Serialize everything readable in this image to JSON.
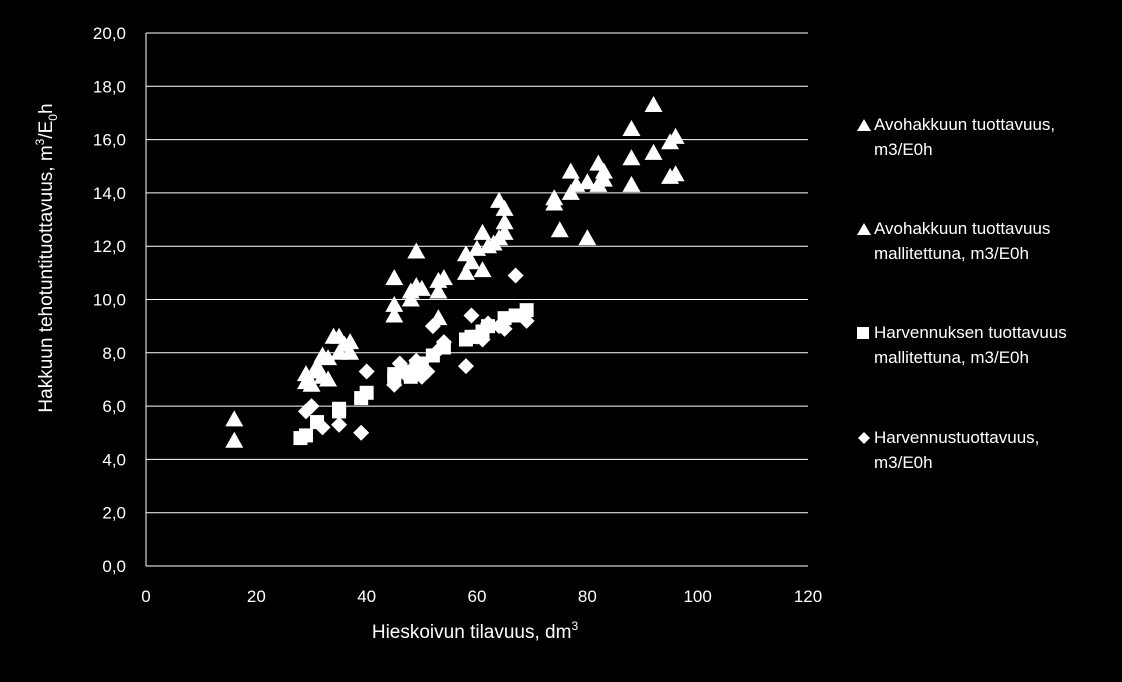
{
  "chart_data": {
    "type": "scatter",
    "xlabel": "Hieskoivun tilavuus, dm",
    "xlabel_sup": "3",
    "ylabel_parts": [
      "Hakkuun tehotuntituottavuus, m",
      "3",
      "/E",
      "0",
      "h"
    ],
    "xlim": [
      0,
      120
    ],
    "ylim": [
      0,
      20
    ],
    "xticks": [
      "0",
      "20",
      "40",
      "60",
      "80",
      "100",
      "120"
    ],
    "yticks": [
      "0,0",
      "2,0",
      "4,0",
      "6,0",
      "8,0",
      "10,0",
      "12,0",
      "14,0",
      "16,0",
      "18,0",
      "20,0"
    ],
    "grid": "horizontal",
    "legend_position": "right",
    "series": [
      {
        "name": "Avohakkuun tuottavuus, m3/E0h",
        "legend_lines": [
          "Avohakkuun tuottavuus,",
          "m3/E0h"
        ],
        "marker": "triangle",
        "points": [
          [
            16,
            5.5
          ],
          [
            16,
            4.7
          ],
          [
            29,
            6.9
          ],
          [
            29,
            7.2
          ],
          [
            30,
            6.8
          ],
          [
            31,
            7.3
          ],
          [
            31,
            7.5
          ],
          [
            32,
            7.9
          ],
          [
            32,
            7.1
          ],
          [
            33,
            7.0
          ],
          [
            33,
            7.8
          ],
          [
            34,
            8.6
          ],
          [
            35,
            8.0
          ],
          [
            35,
            8.6
          ],
          [
            36,
            8.3
          ],
          [
            37,
            8.4
          ],
          [
            37,
            8.0
          ],
          [
            45,
            10.8
          ],
          [
            45,
            9.8
          ],
          [
            45,
            9.4
          ],
          [
            48,
            10.3
          ],
          [
            48,
            10.0
          ],
          [
            49,
            10.5
          ],
          [
            49,
            11.8
          ],
          [
            50,
            10.4
          ],
          [
            53,
            10.7
          ],
          [
            53,
            10.3
          ],
          [
            53,
            9.3
          ],
          [
            54,
            10.8
          ],
          [
            58,
            11.0
          ],
          [
            58,
            11.7
          ],
          [
            59,
            11.4
          ],
          [
            60,
            11.9
          ],
          [
            61,
            12.5
          ],
          [
            61,
            11.1
          ],
          [
            62,
            12.0
          ],
          [
            63,
            12.1
          ],
          [
            64,
            13.7
          ],
          [
            64,
            12.3
          ],
          [
            65,
            13.4
          ],
          [
            65,
            12.9
          ],
          [
            65,
            12.5
          ],
          [
            74,
            13.8
          ],
          [
            74,
            13.6
          ],
          [
            75,
            12.6
          ],
          [
            77,
            14.8
          ],
          [
            77,
            14.0
          ],
          [
            78,
            14.3
          ],
          [
            80,
            14.4
          ],
          [
            80,
            12.3
          ],
          [
            82,
            15.1
          ],
          [
            82,
            14.3
          ],
          [
            83,
            14.5
          ],
          [
            83,
            14.8
          ],
          [
            88,
            16.4
          ],
          [
            88,
            15.3
          ],
          [
            88,
            14.3
          ],
          [
            92,
            17.3
          ],
          [
            92,
            15.5
          ],
          [
            95,
            14.6
          ],
          [
            95,
            15.9
          ],
          [
            96,
            16.1
          ],
          [
            96,
            14.7
          ]
        ]
      },
      {
        "name": "Avohakkuun tuottavuus mallitettuna, m3/E0h",
        "legend_lines": [
          "Avohakkuun tuottavuus",
          "mallitettuna, m3/E0h"
        ],
        "marker": "triangle",
        "points": []
      },
      {
        "name": "Harvennuksen tuottavuus mallitettuna, m3/E0h",
        "legend_lines": [
          "Harvennuksen tuottavuus",
          "mallitettuna, m3/E0h"
        ],
        "marker": "square",
        "points": [
          [
            28,
            4.8
          ],
          [
            29,
            4.9
          ],
          [
            31,
            5.4
          ],
          [
            35,
            5.8
          ],
          [
            35,
            5.9
          ],
          [
            39,
            6.3
          ],
          [
            40,
            6.5
          ],
          [
            45,
            7.0
          ],
          [
            45,
            7.2
          ],
          [
            47,
            7.3
          ],
          [
            48,
            7.1
          ],
          [
            49,
            7.5
          ],
          [
            50,
            7.6
          ],
          [
            52,
            7.9
          ],
          [
            54,
            8.2
          ],
          [
            58,
            8.5
          ],
          [
            59,
            8.6
          ],
          [
            60,
            8.6
          ],
          [
            61,
            8.8
          ],
          [
            62,
            9.0
          ],
          [
            65,
            9.3
          ],
          [
            67,
            9.4
          ],
          [
            69,
            9.6
          ]
        ]
      },
      {
        "name": "Harvennustuottavuus, m3/E0h",
        "legend_lines": [
          "Harvennustuottavuus,",
          "m3/E0h"
        ],
        "marker": "diamond",
        "points": [
          [
            29,
            5.8
          ],
          [
            30,
            6.0
          ],
          [
            32,
            5.2
          ],
          [
            35,
            5.3
          ],
          [
            39,
            5.0
          ],
          [
            40,
            7.3
          ],
          [
            45,
            6.8
          ],
          [
            46,
            7.6
          ],
          [
            47,
            7.2
          ],
          [
            48,
            7.3
          ],
          [
            49,
            7.7
          ],
          [
            50,
            7.1
          ],
          [
            51,
            7.3
          ],
          [
            52,
            9.0
          ],
          [
            53,
            8.1
          ],
          [
            54,
            8.4
          ],
          [
            58,
            7.5
          ],
          [
            59,
            9.4
          ],
          [
            60,
            8.6
          ],
          [
            61,
            8.5
          ],
          [
            62,
            9.1
          ],
          [
            64,
            9.0
          ],
          [
            65,
            8.9
          ],
          [
            67,
            10.9
          ],
          [
            69,
            9.2
          ]
        ]
      }
    ]
  }
}
